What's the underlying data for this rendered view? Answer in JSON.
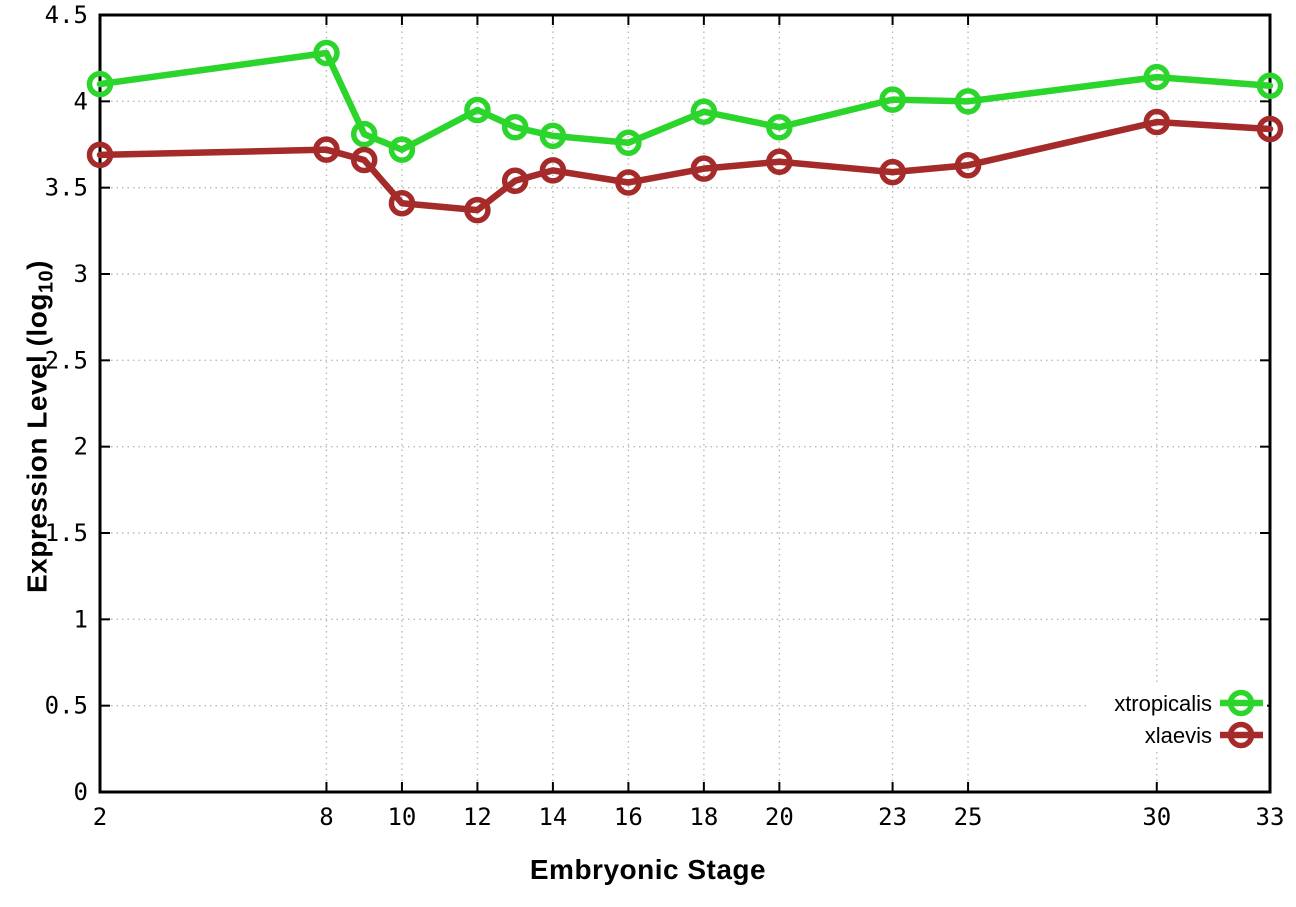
{
  "chart_data": {
    "type": "line",
    "title": "",
    "xlabel": "Embryonic Stage",
    "ylabel": "Expression Level (log10)",
    "ylabel_parts": {
      "main": "Expression Level (log",
      "sub": "10",
      "end": ")"
    },
    "x": [
      2,
      8,
      9,
      10,
      12,
      13,
      14,
      16,
      18,
      20,
      23,
      25,
      30,
      33
    ],
    "series": [
      {
        "name": "xtropicalis",
        "color": "#2bd52b",
        "values": [
          4.1,
          4.28,
          3.81,
          3.72,
          3.95,
          3.85,
          3.8,
          3.76,
          3.94,
          3.85,
          4.01,
          4.0,
          4.14,
          4.09
        ]
      },
      {
        "name": "xlaevis",
        "color": "#a52a2a",
        "values": [
          3.69,
          3.72,
          3.66,
          3.41,
          3.37,
          3.54,
          3.6,
          3.53,
          3.61,
          3.65,
          3.59,
          3.63,
          3.88,
          3.84
        ]
      }
    ],
    "xlim": [
      2,
      33
    ],
    "ylim": [
      0,
      4.5
    ],
    "xticks": [
      2,
      8,
      10,
      12,
      14,
      16,
      18,
      20,
      23,
      25,
      30,
      33
    ],
    "xtick_labels": [
      "2",
      "8",
      "10",
      "12",
      "14",
      "16",
      "18",
      "20",
      "23",
      "25",
      "30",
      "33"
    ],
    "yticks": [
      0,
      0.5,
      1,
      1.5,
      2,
      2.5,
      3,
      3.5,
      4,
      4.5
    ],
    "ytick_labels": [
      "0",
      "0.5",
      "1",
      "1.5",
      "2",
      "2.5",
      "3",
      "3.5",
      "4",
      "4.5"
    ],
    "grid": true,
    "legend_position": "inside-bottom-right",
    "legend": [
      "xtropicalis",
      "xlaevis"
    ]
  },
  "style": {
    "background_color": "#ffffff",
    "border_color": "#000000",
    "grid_color": "#b9b9b9",
    "tick_label_color": "#000000",
    "series_colors": {
      "xtropicalis": "#2bd52b",
      "xlaevis": "#a52a2a"
    }
  }
}
